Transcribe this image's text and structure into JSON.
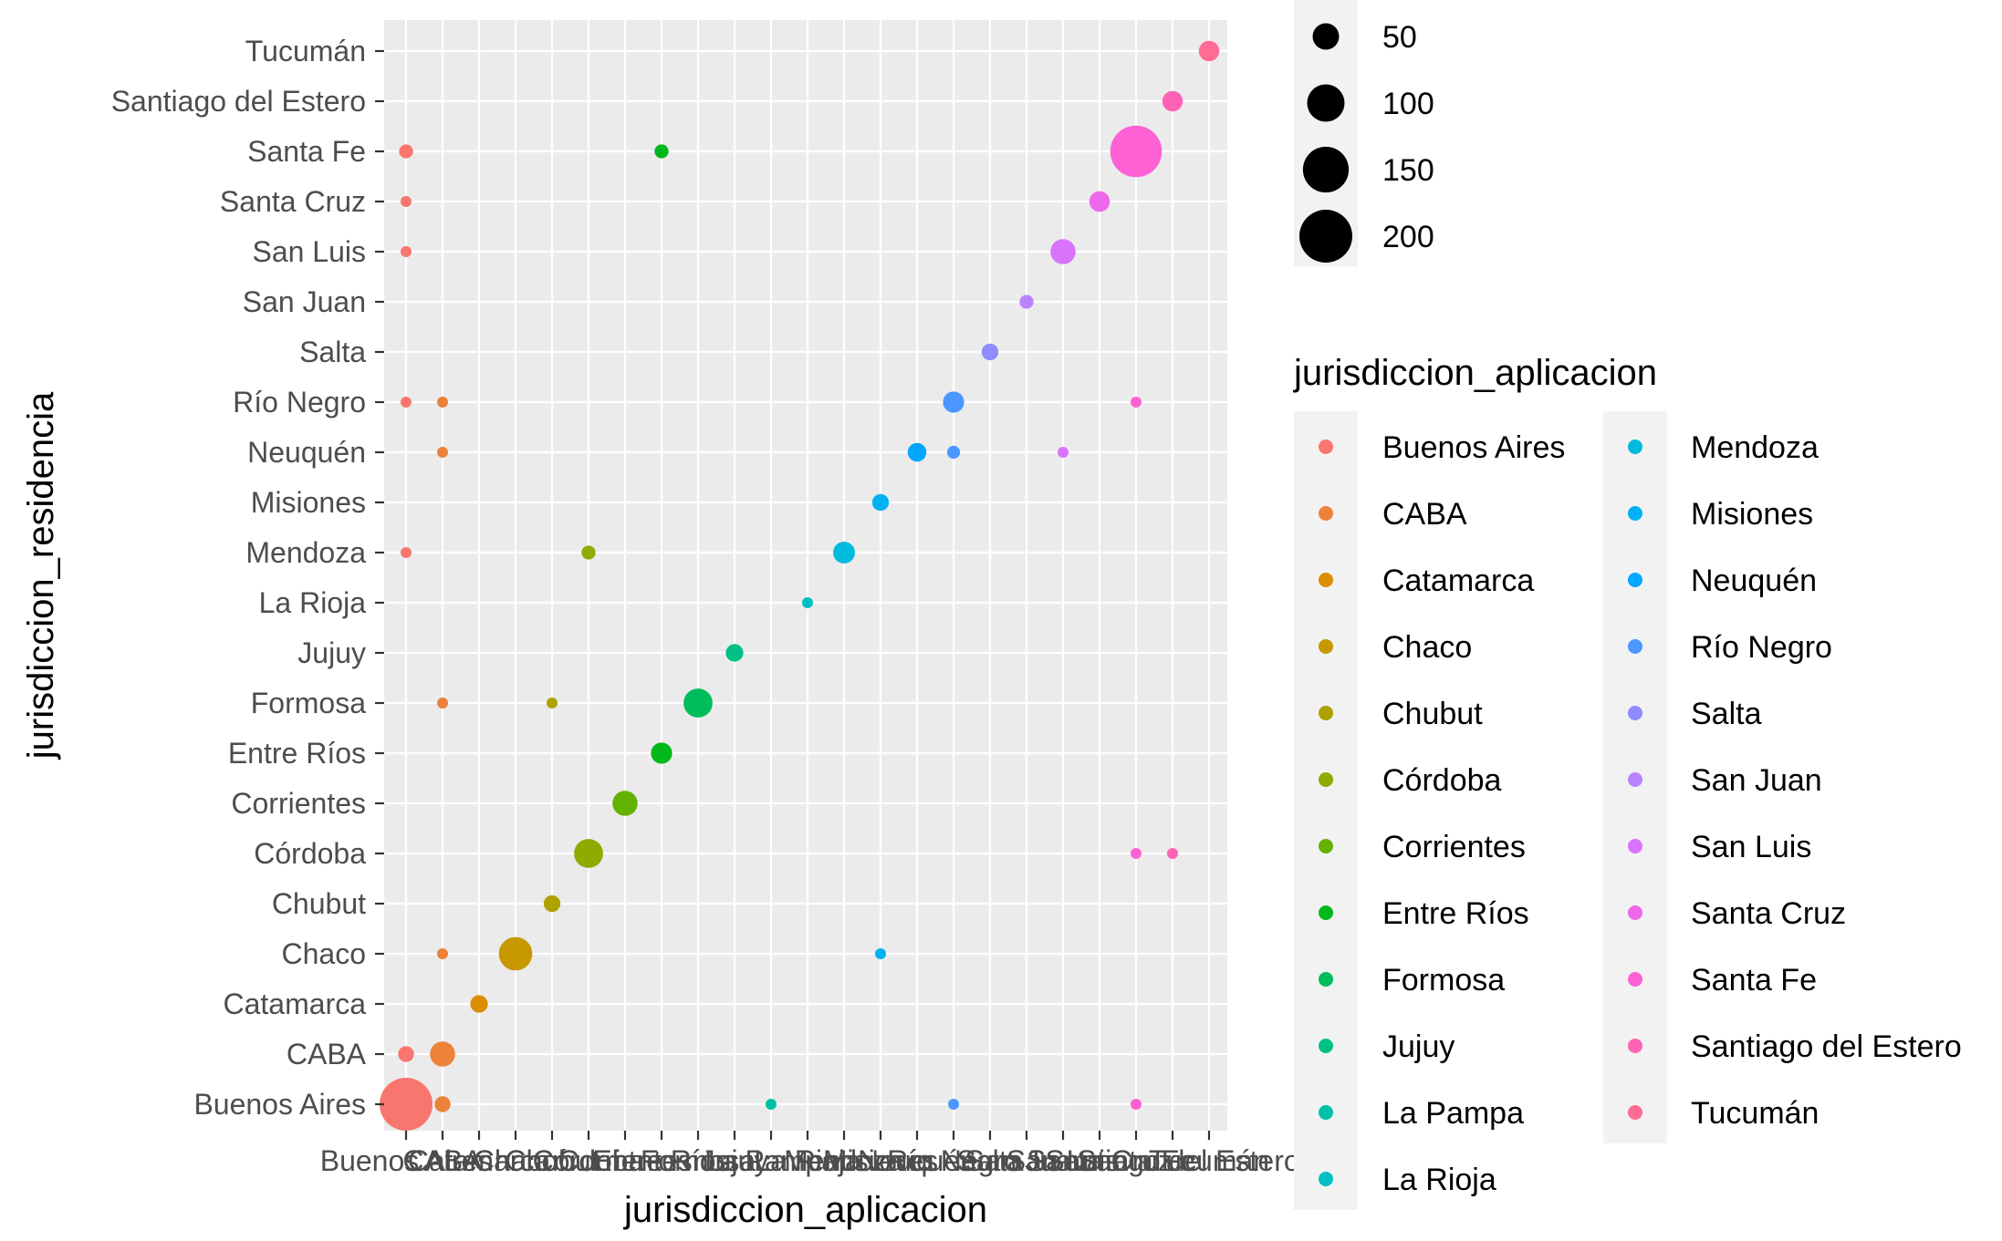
{
  "chart_data": {
    "type": "scatter",
    "xlabel": "jurisdiccion_aplicacion",
    "ylabel": "jurisdiccion_residencia",
    "categories": [
      "Buenos Aires",
      "CABA",
      "Catamarca",
      "Chaco",
      "Chubut",
      "Córdoba",
      "Corrientes",
      "Entre Ríos",
      "Formosa",
      "Jujuy",
      "La Pampa",
      "La Rioja",
      "Mendoza",
      "Misiones",
      "Neuquén",
      "Río Negro",
      "Salta",
      "San Juan",
      "San Luis",
      "Santa Cruz",
      "Santa Fe",
      "Santiago del Estero",
      "Tucumán"
    ],
    "y_categories": [
      "Buenos Aires",
      "CABA",
      "Catamarca",
      "Chaco",
      "Chubut",
      "Córdoba",
      "Corrientes",
      "Entre Ríos",
      "Formosa",
      "Jujuy",
      "La Rioja",
      "Mendoza",
      "Misiones",
      "Neuquén",
      "Río Negro",
      "Salta",
      "San Juan",
      "San Luis",
      "Santa Cruz",
      "Santa Fe",
      "Santiago del Estero",
      "Tucumán"
    ],
    "colors": [
      "#F8766D",
      "#EC8239",
      "#DB8E00",
      "#C79800",
      "#AEA200",
      "#8FAA00",
      "#64B200",
      "#00B81B",
      "#00BD5C",
      "#00C085",
      "#00C1A7",
      "#00BFC4",
      "#00BADE",
      "#00B2F3",
      "#00A6FF",
      "#4C97FF",
      "#8E8CFF",
      "#B983FF",
      "#D973FC",
      "#EF67EB",
      "#FD61D3",
      "#FF63B6",
      "#FF6B94"
    ],
    "points": [
      {
        "x": "Buenos Aires",
        "y": "Buenos Aires",
        "size": 200
      },
      {
        "x": "CABA",
        "y": "Buenos Aires",
        "size": 18
      },
      {
        "x": "La Pampa",
        "y": "Buenos Aires",
        "size": 8
      },
      {
        "x": "Río Negro",
        "y": "Buenos Aires",
        "size": 7
      },
      {
        "x": "Santa Fe",
        "y": "Buenos Aires",
        "size": 7
      },
      {
        "x": "Buenos Aires",
        "y": "CABA",
        "size": 18
      },
      {
        "x": "CABA",
        "y": "CABA",
        "size": 45
      },
      {
        "x": "Catamarca",
        "y": "Catamarca",
        "size": 22
      },
      {
        "x": "CABA",
        "y": "Chaco",
        "size": 7
      },
      {
        "x": "Chaco",
        "y": "Chaco",
        "size": 80
      },
      {
        "x": "Misiones",
        "y": "Chaco",
        "size": 7
      },
      {
        "x": "Chubut",
        "y": "Chubut",
        "size": 20
      },
      {
        "x": "Córdoba",
        "y": "Córdoba",
        "size": 60
      },
      {
        "x": "Santa Fe",
        "y": "Córdoba",
        "size": 7
      },
      {
        "x": "Santiago del Estero",
        "y": "Córdoba",
        "size": 7
      },
      {
        "x": "Corrientes",
        "y": "Corrientes",
        "size": 45
      },
      {
        "x": "Entre Ríos",
        "y": "Entre Ríos",
        "size": 32
      },
      {
        "x": "CABA",
        "y": "Formosa",
        "size": 7
      },
      {
        "x": "Chubut",
        "y": "Formosa",
        "size": 7
      },
      {
        "x": "Formosa",
        "y": "Formosa",
        "size": 60
      },
      {
        "x": "Jujuy",
        "y": "Jujuy",
        "size": 22
      },
      {
        "x": "La Rioja",
        "y": "La Rioja",
        "size": 7
      },
      {
        "x": "Buenos Aires",
        "y": "Mendoza",
        "size": 7
      },
      {
        "x": "Córdoba",
        "y": "Mendoza",
        "size": 14
      },
      {
        "x": "Mendoza",
        "y": "Mendoza",
        "size": 34
      },
      {
        "x": "Misiones",
        "y": "Misiones",
        "size": 20
      },
      {
        "x": "CABA",
        "y": "Neuquén",
        "size": 7
      },
      {
        "x": "Neuquén",
        "y": "Neuquén",
        "size": 25
      },
      {
        "x": "Río Negro",
        "y": "Neuquén",
        "size": 12
      },
      {
        "x": "San Luis",
        "y": "Neuquén",
        "size": 7
      },
      {
        "x": "Buenos Aires",
        "y": "Río Negro",
        "size": 7
      },
      {
        "x": "CABA",
        "y": "Río Negro",
        "size": 7
      },
      {
        "x": "Río Negro",
        "y": "Río Negro",
        "size": 32
      },
      {
        "x": "Santa Fe",
        "y": "Río Negro",
        "size": 7
      },
      {
        "x": "Salta",
        "y": "Salta",
        "size": 20
      },
      {
        "x": "San Juan",
        "y": "San Juan",
        "size": 14
      },
      {
        "x": "Buenos Aires",
        "y": "San Luis",
        "size": 7
      },
      {
        "x": "San Luis",
        "y": "San Luis",
        "size": 45
      },
      {
        "x": "Buenos Aires",
        "y": "Santa Cruz",
        "size": 7
      },
      {
        "x": "Santa Cruz",
        "y": "Santa Cruz",
        "size": 30
      },
      {
        "x": "Buenos Aires",
        "y": "Santa Fe",
        "size": 14
      },
      {
        "x": "Entre Ríos",
        "y": "Santa Fe",
        "size": 14
      },
      {
        "x": "Santa Fe",
        "y": "Santa Fe",
        "size": 190
      },
      {
        "x": "Santiago del Estero",
        "y": "Santiago del Estero",
        "size": 30
      },
      {
        "x": "Tucumán",
        "y": "Tucumán",
        "size": 30
      }
    ],
    "size_legend": {
      "values": [
        "50",
        "100",
        "150",
        "200"
      ]
    },
    "color_legend": {
      "title": "jurisdiccion_aplicacion"
    },
    "panel_background": "#EBEBEB",
    "grid": true
  }
}
